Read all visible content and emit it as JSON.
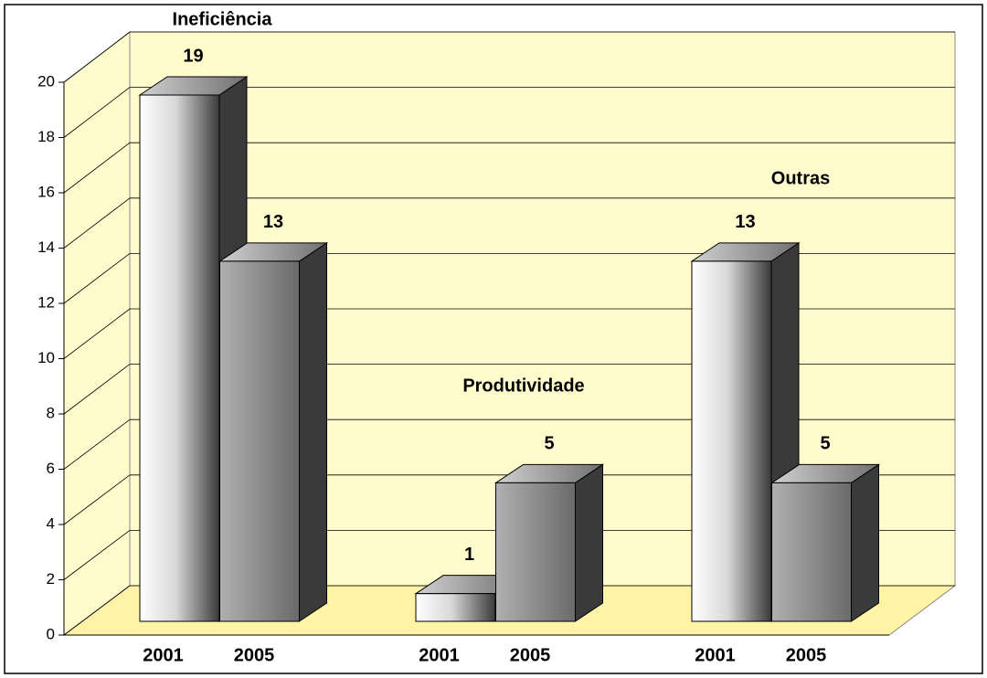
{
  "chart_data": {
    "type": "bar",
    "groups": [
      "Ineficiência",
      "Produtividade",
      "Outras"
    ],
    "categories": [
      "2001",
      "2005",
      "2001",
      "2005",
      "2001",
      "2005"
    ],
    "values": [
      19,
      13,
      1,
      5,
      13,
      5
    ],
    "ylim": [
      0,
      20
    ],
    "yticks": [
      0,
      2,
      4,
      6,
      8,
      10,
      12,
      14,
      16,
      18,
      20
    ],
    "grid": true,
    "wall_color": "#fffbcc",
    "floor_color": "#fff3a6"
  }
}
